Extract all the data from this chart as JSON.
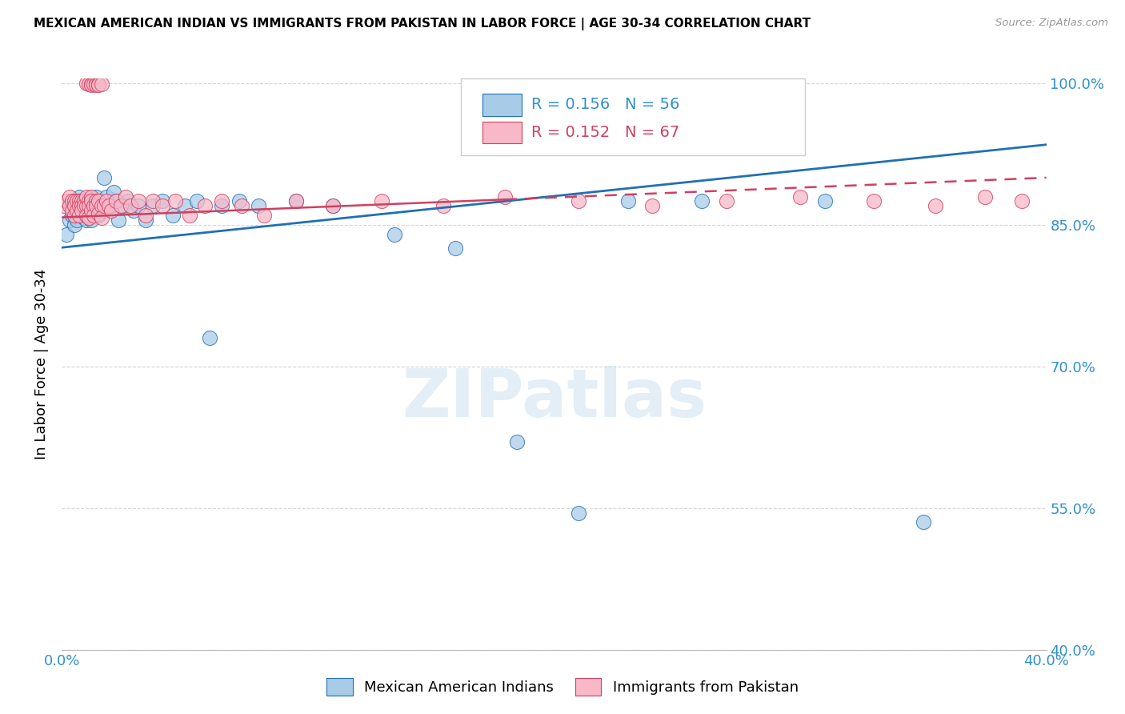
{
  "title": "MEXICAN AMERICAN INDIAN VS IMMIGRANTS FROM PAKISTAN IN LABOR FORCE | AGE 30-34 CORRELATION CHART",
  "source": "Source: ZipAtlas.com",
  "ylabel": "In Labor Force | Age 30-34",
  "xlim": [
    0.0,
    0.4
  ],
  "ylim": [
    0.4,
    1.005
  ],
  "xticks": [
    0.0,
    0.08,
    0.16,
    0.24,
    0.32,
    0.4
  ],
  "xticklabels": [
    "0.0%",
    "",
    "",
    "",
    "",
    "40.0%"
  ],
  "yticks": [
    0.4,
    0.55,
    0.7,
    0.85,
    1.0
  ],
  "yticklabels": [
    "40.0%",
    "55.0%",
    "70.0%",
    "85.0%",
    "100.0%"
  ],
  "blue_color": "#a8cce8",
  "pink_color": "#f8b8c8",
  "trend_blue": "#2070b4",
  "trend_pink": "#d04060",
  "axis_color": "#3090d0",
  "watermark": "ZIPatlas",
  "blue_label": "Mexican American Indians",
  "pink_label": "Immigrants from Pakistan",
  "blue_R": "0.156",
  "blue_N": "56",
  "pink_R": "0.152",
  "pink_N": "67",
  "blue_scatter_x": [
    0.002,
    0.003,
    0.004,
    0.004,
    0.005,
    0.005,
    0.005,
    0.006,
    0.006,
    0.007,
    0.007,
    0.008,
    0.008,
    0.009,
    0.009,
    0.01,
    0.01,
    0.011,
    0.011,
    0.012,
    0.012,
    0.013,
    0.013,
    0.014,
    0.015,
    0.016,
    0.017,
    0.018,
    0.02,
    0.021,
    0.022,
    0.023,
    0.025,
    0.027,
    0.029,
    0.031,
    0.034,
    0.037,
    0.041,
    0.045,
    0.05,
    0.055,
    0.06,
    0.065,
    0.072,
    0.08,
    0.095,
    0.11,
    0.135,
    0.16,
    0.185,
    0.21,
    0.23,
    0.26,
    0.31,
    0.35
  ],
  "blue_scatter_y": [
    0.84,
    0.855,
    0.87,
    0.86,
    0.875,
    0.86,
    0.85,
    0.87,
    0.855,
    0.88,
    0.865,
    0.87,
    0.86,
    0.875,
    0.858,
    0.87,
    0.855,
    0.875,
    0.86,
    0.87,
    0.855,
    0.865,
    0.87,
    0.88,
    0.86,
    0.87,
    0.9,
    0.88,
    0.87,
    0.885,
    0.875,
    0.855,
    0.87,
    0.875,
    0.865,
    0.87,
    0.855,
    0.87,
    0.875,
    0.86,
    0.87,
    0.875,
    0.73,
    0.87,
    0.875,
    0.87,
    0.875,
    0.87,
    0.84,
    0.825,
    0.62,
    0.545,
    0.875,
    0.875,
    0.875,
    0.535
  ],
  "pink_scatter_x": [
    0.001,
    0.002,
    0.003,
    0.003,
    0.004,
    0.004,
    0.005,
    0.005,
    0.005,
    0.006,
    0.006,
    0.007,
    0.007,
    0.007,
    0.008,
    0.008,
    0.008,
    0.009,
    0.009,
    0.01,
    0.01,
    0.01,
    0.011,
    0.011,
    0.011,
    0.012,
    0.012,
    0.012,
    0.013,
    0.013,
    0.014,
    0.014,
    0.015,
    0.015,
    0.016,
    0.016,
    0.017,
    0.018,
    0.019,
    0.02,
    0.022,
    0.024,
    0.026,
    0.028,
    0.031,
    0.034,
    0.037,
    0.041,
    0.046,
    0.052,
    0.058,
    0.065,
    0.073,
    0.082,
    0.095,
    0.11,
    0.13,
    0.155,
    0.18,
    0.21,
    0.24,
    0.27,
    0.3,
    0.33,
    0.355,
    0.375,
    0.39
  ],
  "pink_scatter_y": [
    0.87,
    0.875,
    0.88,
    0.87,
    0.875,
    0.865,
    0.875,
    0.87,
    0.86,
    0.875,
    0.865,
    0.875,
    0.87,
    0.86,
    0.875,
    0.87,
    0.865,
    0.875,
    0.87,
    0.87,
    0.88,
    0.86,
    0.875,
    0.87,
    0.858,
    0.88,
    0.875,
    0.865,
    0.87,
    0.86,
    0.875,
    0.87,
    0.875,
    0.862,
    0.87,
    0.858,
    0.87,
    0.875,
    0.87,
    0.865,
    0.875,
    0.87,
    0.88,
    0.87,
    0.875,
    0.86,
    0.875,
    0.87,
    0.875,
    0.86,
    0.87,
    0.875,
    0.87,
    0.86,
    0.875,
    0.87,
    0.875,
    0.87,
    0.88,
    0.875,
    0.87,
    0.875,
    0.88,
    0.875,
    0.87,
    0.88,
    0.875
  ],
  "pink_top_x": [
    0.01,
    0.011,
    0.012,
    0.012,
    0.013,
    0.014,
    0.014,
    0.015,
    0.015,
    0.016
  ],
  "pink_top_y": [
    1.0,
    0.999,
    0.999,
    0.998,
    0.999,
    1.0,
    0.998,
    0.999,
    0.998,
    0.999
  ]
}
